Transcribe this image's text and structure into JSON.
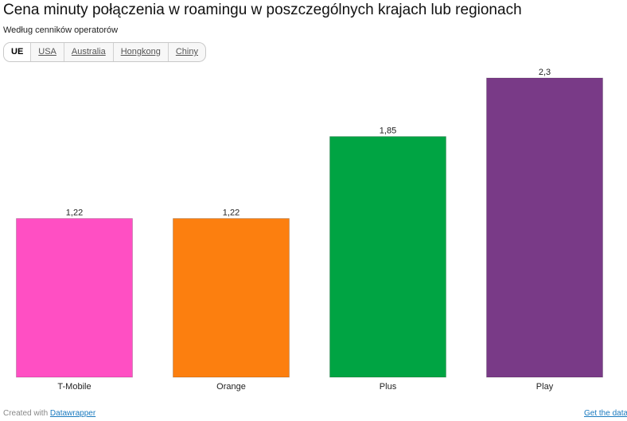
{
  "title": "Cena minuty połączenia w roamingu w poszczególnych krajach lub regionach",
  "subtitle": "Według cenników operatorów",
  "tabs": [
    {
      "label": "UE",
      "active": true
    },
    {
      "label": "USA",
      "active": false
    },
    {
      "label": "Australia",
      "active": false
    },
    {
      "label": "Hongkong",
      "active": false
    },
    {
      "label": "Chiny",
      "active": false
    }
  ],
  "chart_data": {
    "type": "bar",
    "title": "Cena minuty połączenia w roamingu w poszczególnych krajach lub regionach",
    "subtitle": "Według cenników operatorów",
    "categories": [
      "T-Mobile",
      "Orange",
      "Plus",
      "Play"
    ],
    "values": [
      1.22,
      1.22,
      1.85,
      2.3
    ],
    "value_labels": [
      "1,22",
      "1,22",
      "1,85",
      "2,3"
    ],
    "colors": [
      "#ff4fc3",
      "#fc7f0f",
      "#00a443",
      "#793a87"
    ],
    "ylim": [
      0,
      2.3
    ],
    "grid": false,
    "legend": "none"
  },
  "footer": {
    "created_with": "Created with",
    "tool_link": "Datawrapper",
    "get_data": "Get the data"
  }
}
